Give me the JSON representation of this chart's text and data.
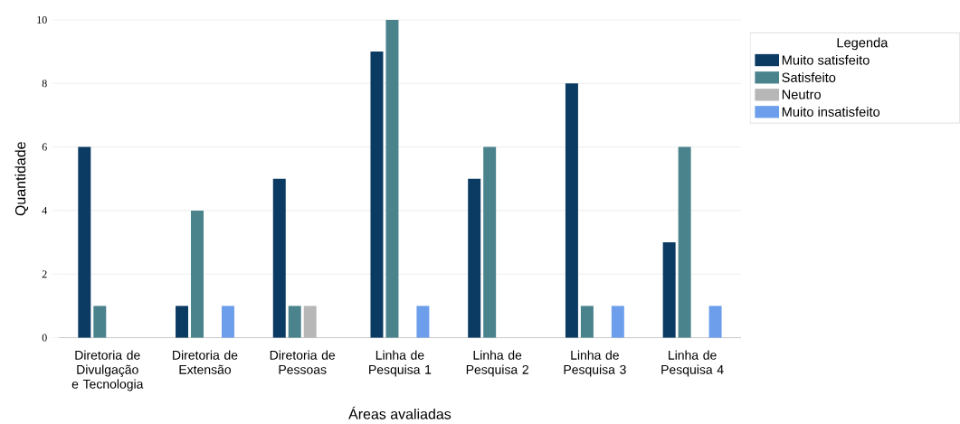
{
  "chart_data": {
    "type": "bar",
    "xlabel": "Áreas avaliadas",
    "ylabel": "Quantidade",
    "legend_title": "Legenda",
    "categories": [
      "Diretoria de Divulgação e Tecnologia",
      "Diretoria de Extensão",
      "Diretoria de Pessoas",
      "Linha de Pesquisa 1",
      "Linha de Pesquisa 2",
      "Linha de Pesquisa 3",
      "Linha de Pesquisa 4"
    ],
    "series": [
      {
        "name": "Muito satisfeito",
        "color": "#0b3a63",
        "values": [
          6,
          1,
          5,
          9,
          5,
          8,
          3
        ]
      },
      {
        "name": "Satisfeito",
        "color": "#4a838c",
        "values": [
          1,
          4,
          1,
          10,
          6,
          1,
          6
        ]
      },
      {
        "name": "Neutro",
        "color": "#b7b7b7",
        "values": [
          0,
          0,
          1,
          0,
          0,
          0,
          0
        ]
      },
      {
        "name": "Muito insatisfeito",
        "color": "#6d9eeb",
        "values": [
          0,
          1,
          0,
          1,
          0,
          1,
          1
        ]
      }
    ],
    "ylim": [
      0,
      10
    ],
    "yticks": [
      0,
      2,
      4,
      6,
      8,
      10
    ],
    "grid": "y",
    "legend": "right"
  }
}
